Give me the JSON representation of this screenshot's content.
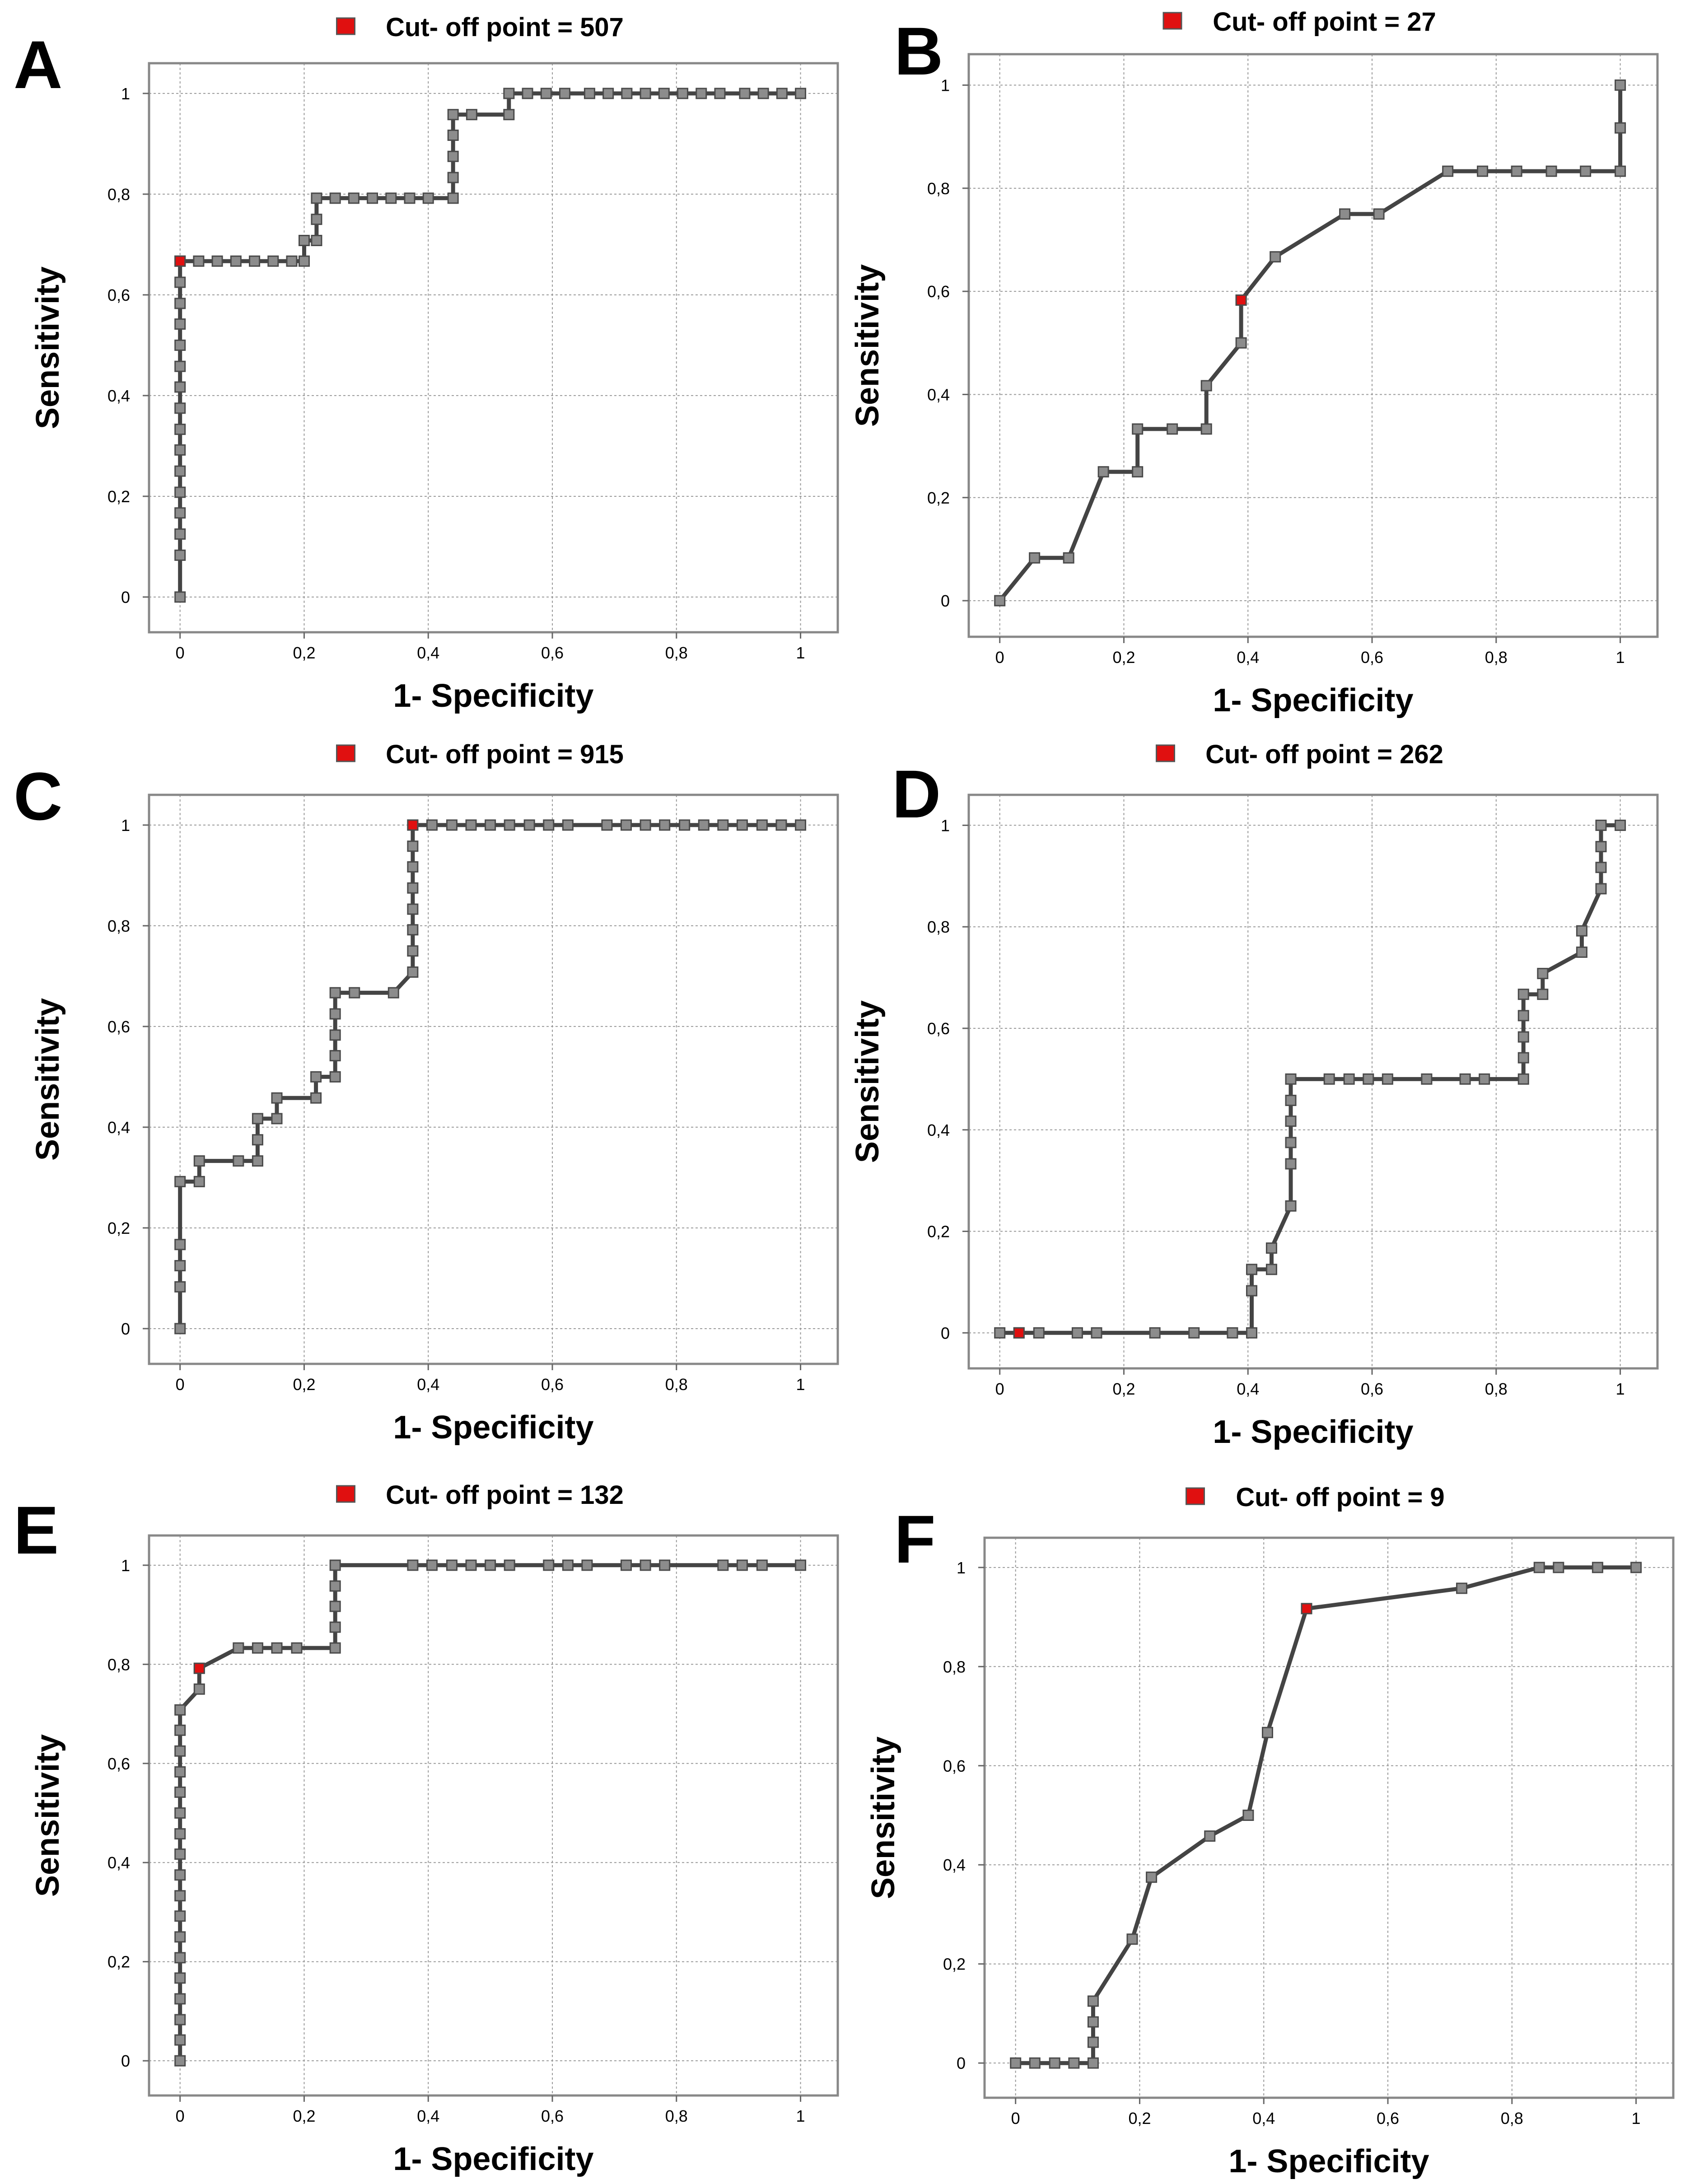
{
  "chart_data": [
    {
      "type": "line",
      "panel": "A",
      "title": "Cut- off point = 507",
      "xlabel": "1- Specificity",
      "ylabel": "Sensitivity",
      "xlim": [
        -0.05,
        1.06
      ],
      "ylim": [
        -0.07,
        1.06
      ],
      "xticks": [
        0,
        0.2,
        0.4,
        0.6,
        0.8,
        1
      ],
      "yticks": [
        0,
        0.2,
        0.4,
        0.6,
        0.8,
        1
      ],
      "xtick_labels": [
        "0",
        "0,2",
        "0,4",
        "0,6",
        "0,8",
        "1"
      ],
      "ytick_labels": [
        "0",
        "0,2",
        "0,4",
        "0,6",
        "0,8",
        "1"
      ],
      "grid": true,
      "cutoff": {
        "x": 0,
        "y": 0.667
      },
      "points": [
        [
          0,
          0
        ],
        [
          0,
          0.083
        ],
        [
          0,
          0.125
        ],
        [
          0,
          0.167
        ],
        [
          0,
          0.208
        ],
        [
          0,
          0.25
        ],
        [
          0,
          0.292
        ],
        [
          0,
          0.333
        ],
        [
          0,
          0.375
        ],
        [
          0,
          0.417
        ],
        [
          0,
          0.458
        ],
        [
          0,
          0.5
        ],
        [
          0,
          0.542
        ],
        [
          0,
          0.583
        ],
        [
          0,
          0.625
        ],
        [
          0,
          0.667
        ],
        [
          0.03,
          0.667
        ],
        [
          0.06,
          0.667
        ],
        [
          0.09,
          0.667
        ],
        [
          0.12,
          0.667
        ],
        [
          0.15,
          0.667
        ],
        [
          0.18,
          0.667
        ],
        [
          0.2,
          0.667
        ],
        [
          0.2,
          0.708
        ],
        [
          0.22,
          0.708
        ],
        [
          0.22,
          0.75
        ],
        [
          0.22,
          0.792
        ],
        [
          0.25,
          0.792
        ],
        [
          0.28,
          0.792
        ],
        [
          0.31,
          0.792
        ],
        [
          0.34,
          0.792
        ],
        [
          0.37,
          0.792
        ],
        [
          0.4,
          0.792
        ],
        [
          0.44,
          0.792
        ],
        [
          0.44,
          0.833
        ],
        [
          0.44,
          0.875
        ],
        [
          0.44,
          0.917
        ],
        [
          0.44,
          0.958
        ],
        [
          0.47,
          0.958
        ],
        [
          0.53,
          0.958
        ],
        [
          0.53,
          1
        ],
        [
          0.56,
          1
        ],
        [
          0.59,
          1
        ],
        [
          0.62,
          1
        ],
        [
          0.66,
          1
        ],
        [
          0.69,
          1
        ],
        [
          0.72,
          1
        ],
        [
          0.75,
          1
        ],
        [
          0.78,
          1
        ],
        [
          0.81,
          1
        ],
        [
          0.84,
          1
        ],
        [
          0.87,
          1
        ],
        [
          0.91,
          1
        ],
        [
          0.94,
          1
        ],
        [
          0.97,
          1
        ],
        [
          1,
          1
        ]
      ]
    },
    {
      "type": "line",
      "panel": "B",
      "title": "Cut- off point = 27",
      "xlabel": "1- Specificity",
      "ylabel": "Sensitivity",
      "xlim": [
        -0.05,
        1.06
      ],
      "ylim": [
        -0.07,
        1.06
      ],
      "xticks": [
        0,
        0.2,
        0.4,
        0.6,
        0.8,
        1
      ],
      "yticks": [
        0,
        0.2,
        0.4,
        0.6,
        0.8,
        1
      ],
      "xtick_labels": [
        "0",
        "0,2",
        "0,4",
        "0,6",
        "0,8",
        "1"
      ],
      "ytick_labels": [
        "0",
        "0,2",
        "0,4",
        "0,6",
        "0,8",
        "1"
      ],
      "grid": true,
      "cutoff": {
        "x": 0.389,
        "y": 0.583
      },
      "points": [
        [
          0,
          0
        ],
        [
          0.056,
          0.083
        ],
        [
          0.111,
          0.083
        ],
        [
          0.167,
          0.25
        ],
        [
          0.222,
          0.25
        ],
        [
          0.222,
          0.333
        ],
        [
          0.278,
          0.333
        ],
        [
          0.333,
          0.333
        ],
        [
          0.333,
          0.417
        ],
        [
          0.389,
          0.5
        ],
        [
          0.389,
          0.583
        ],
        [
          0.444,
          0.667
        ],
        [
          0.556,
          0.75
        ],
        [
          0.611,
          0.75
        ],
        [
          0.722,
          0.833
        ],
        [
          0.778,
          0.833
        ],
        [
          0.833,
          0.833
        ],
        [
          0.889,
          0.833
        ],
        [
          0.944,
          0.833
        ],
        [
          1,
          0.833
        ],
        [
          1,
          0.917
        ],
        [
          1,
          1
        ]
      ]
    },
    {
      "type": "line",
      "panel": "C",
      "title": "Cut- off point = 915",
      "xlabel": "1- Specificity",
      "ylabel": "Sensitivity",
      "xlim": [
        -0.05,
        1.06
      ],
      "ylim": [
        -0.07,
        1.06
      ],
      "xticks": [
        0,
        0.2,
        0.4,
        0.6,
        0.8,
        1
      ],
      "yticks": [
        0,
        0.2,
        0.4,
        0.6,
        0.8,
        1
      ],
      "xtick_labels": [
        "0",
        "0,2",
        "0,4",
        "0,6",
        "0,8",
        "1"
      ],
      "ytick_labels": [
        "0",
        "0,2",
        "0,4",
        "0,6",
        "0,8",
        "1"
      ],
      "grid": true,
      "cutoff": {
        "x": 0.375,
        "y": 1
      },
      "points": [
        [
          0,
          0
        ],
        [
          0,
          0.083
        ],
        [
          0,
          0.125
        ],
        [
          0,
          0.167
        ],
        [
          0,
          0.292
        ],
        [
          0.031,
          0.292
        ],
        [
          0.031,
          0.333
        ],
        [
          0.094,
          0.333
        ],
        [
          0.125,
          0.333
        ],
        [
          0.125,
          0.375
        ],
        [
          0.125,
          0.417
        ],
        [
          0.156,
          0.417
        ],
        [
          0.156,
          0.458
        ],
        [
          0.219,
          0.458
        ],
        [
          0.219,
          0.5
        ],
        [
          0.25,
          0.5
        ],
        [
          0.25,
          0.542
        ],
        [
          0.25,
          0.583
        ],
        [
          0.25,
          0.625
        ],
        [
          0.25,
          0.667
        ],
        [
          0.281,
          0.667
        ],
        [
          0.344,
          0.667
        ],
        [
          0.375,
          0.708
        ],
        [
          0.375,
          0.75
        ],
        [
          0.375,
          0.792
        ],
        [
          0.375,
          0.833
        ],
        [
          0.375,
          0.875
        ],
        [
          0.375,
          0.917
        ],
        [
          0.375,
          0.958
        ],
        [
          0.375,
          1
        ],
        [
          0.406,
          1
        ],
        [
          0.438,
          1
        ],
        [
          0.469,
          1
        ],
        [
          0.5,
          1
        ],
        [
          0.531,
          1
        ],
        [
          0.563,
          1
        ],
        [
          0.594,
          1
        ],
        [
          0.625,
          1
        ],
        [
          0.688,
          1
        ],
        [
          0.719,
          1
        ],
        [
          0.75,
          1
        ],
        [
          0.781,
          1
        ],
        [
          0.813,
          1
        ],
        [
          0.844,
          1
        ],
        [
          0.875,
          1
        ],
        [
          0.906,
          1
        ],
        [
          0.938,
          1
        ],
        [
          0.969,
          1
        ],
        [
          1,
          1
        ]
      ]
    },
    {
      "type": "line",
      "panel": "D",
      "title": "Cut- off point = 262",
      "xlabel": "1- Specificity",
      "ylabel": "Sensitivity",
      "xlim": [
        -0.05,
        1.06
      ],
      "ylim": [
        -0.07,
        1.06
      ],
      "xticks": [
        0,
        0.2,
        0.4,
        0.6,
        0.8,
        1
      ],
      "yticks": [
        0,
        0.2,
        0.4,
        0.6,
        0.8,
        1
      ],
      "xtick_labels": [
        "0",
        "0,2",
        "0,4",
        "0,6",
        "0,8",
        "1"
      ],
      "ytick_labels": [
        "0",
        "0,2",
        "0,4",
        "0,6",
        "0,8",
        "1"
      ],
      "grid": true,
      "cutoff": {
        "x": 0.031,
        "y": 0
      },
      "points": [
        [
          0,
          0
        ],
        [
          0.031,
          0
        ],
        [
          0.063,
          0
        ],
        [
          0.125,
          0
        ],
        [
          0.156,
          0
        ],
        [
          0.25,
          0
        ],
        [
          0.313,
          0
        ],
        [
          0.375,
          0
        ],
        [
          0.406,
          0
        ],
        [
          0.406,
          0.083
        ],
        [
          0.406,
          0.125
        ],
        [
          0.438,
          0.125
        ],
        [
          0.438,
          0.167
        ],
        [
          0.469,
          0.25
        ],
        [
          0.469,
          0.333
        ],
        [
          0.469,
          0.375
        ],
        [
          0.469,
          0.417
        ],
        [
          0.469,
          0.458
        ],
        [
          0.469,
          0.5
        ],
        [
          0.531,
          0.5
        ],
        [
          0.563,
          0.5
        ],
        [
          0.594,
          0.5
        ],
        [
          0.625,
          0.5
        ],
        [
          0.688,
          0.5
        ],
        [
          0.75,
          0.5
        ],
        [
          0.781,
          0.5
        ],
        [
          0.844,
          0.5
        ],
        [
          0.844,
          0.542
        ],
        [
          0.844,
          0.583
        ],
        [
          0.844,
          0.625
        ],
        [
          0.844,
          0.667
        ],
        [
          0.875,
          0.667
        ],
        [
          0.875,
          0.708
        ],
        [
          0.938,
          0.75
        ],
        [
          0.938,
          0.792
        ],
        [
          0.969,
          0.875
        ],
        [
          0.969,
          0.917
        ],
        [
          0.969,
          0.958
        ],
        [
          0.969,
          1
        ],
        [
          1,
          1
        ]
      ]
    },
    {
      "type": "line",
      "panel": "E",
      "title": "Cut- off point = 132",
      "xlabel": "1- Specificity",
      "ylabel": "Sensitivity",
      "xlim": [
        -0.05,
        1.06
      ],
      "ylim": [
        -0.07,
        1.06
      ],
      "xticks": [
        0,
        0.2,
        0.4,
        0.6,
        0.8,
        1
      ],
      "yticks": [
        0,
        0.2,
        0.4,
        0.6,
        0.8,
        1
      ],
      "xtick_labels": [
        "0",
        "0,2",
        "0,4",
        "0,6",
        "0,8",
        "1"
      ],
      "ytick_labels": [
        "0",
        "0,2",
        "0,4",
        "0,6",
        "0,8",
        "1"
      ],
      "grid": true,
      "cutoff": {
        "x": 0.031,
        "y": 0.792
      },
      "points": [
        [
          0,
          0
        ],
        [
          0,
          0.042
        ],
        [
          0,
          0.083
        ],
        [
          0,
          0.125
        ],
        [
          0,
          0.167
        ],
        [
          0,
          0.208
        ],
        [
          0,
          0.25
        ],
        [
          0,
          0.292
        ],
        [
          0,
          0.333
        ],
        [
          0,
          0.375
        ],
        [
          0,
          0.417
        ],
        [
          0,
          0.458
        ],
        [
          0,
          0.5
        ],
        [
          0,
          0.542
        ],
        [
          0,
          0.583
        ],
        [
          0,
          0.625
        ],
        [
          0,
          0.667
        ],
        [
          0,
          0.708
        ],
        [
          0.031,
          0.75
        ],
        [
          0.031,
          0.792
        ],
        [
          0.094,
          0.833
        ],
        [
          0.125,
          0.833
        ],
        [
          0.156,
          0.833
        ],
        [
          0.188,
          0.833
        ],
        [
          0.25,
          0.833
        ],
        [
          0.25,
          0.875
        ],
        [
          0.25,
          0.917
        ],
        [
          0.25,
          0.958
        ],
        [
          0.25,
          1
        ],
        [
          0.375,
          1
        ],
        [
          0.406,
          1
        ],
        [
          0.438,
          1
        ],
        [
          0.469,
          1
        ],
        [
          0.5,
          1
        ],
        [
          0.531,
          1
        ],
        [
          0.594,
          1
        ],
        [
          0.625,
          1
        ],
        [
          0.656,
          1
        ],
        [
          0.719,
          1
        ],
        [
          0.75,
          1
        ],
        [
          0.781,
          1
        ],
        [
          0.875,
          1
        ],
        [
          0.906,
          1
        ],
        [
          0.938,
          1
        ],
        [
          1,
          1
        ]
      ]
    },
    {
      "type": "line",
      "panel": "F",
      "title": "Cut- off point = 9",
      "xlabel": "1- Specificity",
      "ylabel": "Sensitivity",
      "xlim": [
        -0.05,
        1.06
      ],
      "ylim": [
        -0.07,
        1.06
      ],
      "xticks": [
        0,
        0.2,
        0.4,
        0.6,
        0.8,
        1
      ],
      "yticks": [
        0,
        0.2,
        0.4,
        0.6,
        0.8,
        1
      ],
      "xtick_labels": [
        "0",
        "0,2",
        "0,4",
        "0,6",
        "0,8",
        "1"
      ],
      "ytick_labels": [
        "0",
        "0,2",
        "0,4",
        "0,6",
        "0,8",
        "1"
      ],
      "grid": true,
      "cutoff": {
        "x": 0.469,
        "y": 0.917
      },
      "points": [
        [
          0,
          0
        ],
        [
          0.031,
          0
        ],
        [
          0.063,
          0
        ],
        [
          0.094,
          0
        ],
        [
          0.125,
          0
        ],
        [
          0.125,
          0.042
        ],
        [
          0.125,
          0.083
        ],
        [
          0.125,
          0.125
        ],
        [
          0.188,
          0.25
        ],
        [
          0.219,
          0.375
        ],
        [
          0.313,
          0.458
        ],
        [
          0.375,
          0.5
        ],
        [
          0.406,
          0.667
        ],
        [
          0.469,
          0.917
        ],
        [
          0.719,
          0.958
        ],
        [
          0.844,
          1
        ],
        [
          0.875,
          1
        ],
        [
          0.938,
          1
        ],
        [
          1,
          1
        ]
      ]
    }
  ]
}
